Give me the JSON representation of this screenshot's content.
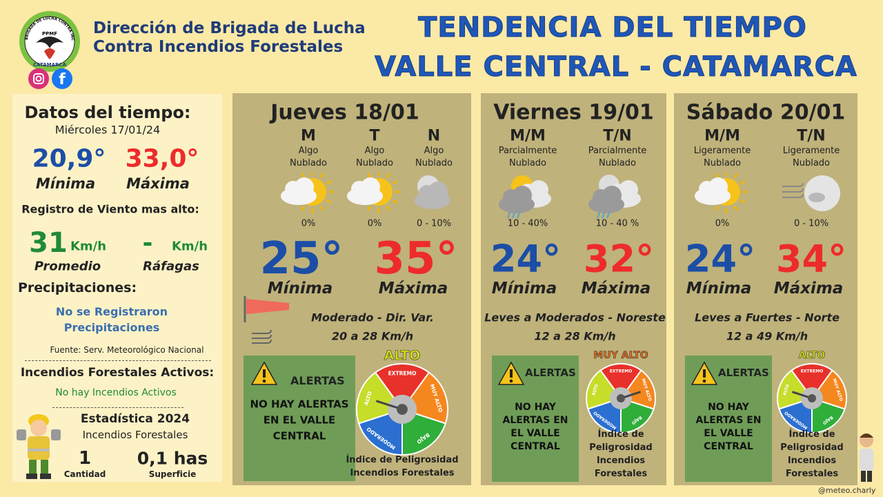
{
  "header": {
    "logo_ring": "BRIGADA DE LUCHA CONTRA INCENDIOS FORESTALES",
    "logo_code": "PPMF",
    "logo_place": "CATAMARCA",
    "org_line1": "Dirección de Brigada de Lucha",
    "org_line2": "Contra Incendios Forestales",
    "title_line1": "TENDENCIA DEL TIEMPO",
    "title_line2": "VALLE CENTRAL - CATAMARCA"
  },
  "today": {
    "heading": "Datos del tiempo:",
    "date": "Miércoles 17/01/24",
    "min": "20,9°",
    "min_label": "Mínima",
    "max": "33,0°",
    "max_label": "Máxima",
    "wind_heading": "Registro de Viento mas alto:",
    "wind_avg": "31",
    "wind_avg_unit": "Km/h",
    "wind_avg_label": "Promedio",
    "gust": "-",
    "gust_unit": "Km/h",
    "gust_label": "Ráfagas",
    "precip_heading": "Precipitaciones:",
    "precip_text": "No se Registraron Precipitaciones",
    "source": "Fuente: Serv. Meteorológico Nacional",
    "fires_heading": "Incendios Forestales Activos:",
    "fires_text": "No hay Incendios Activos",
    "stats_heading": "Estadística 2024",
    "stats_sub": "Incendios Forestales",
    "count": "1",
    "count_label": "Cantidad",
    "area": "0,1 has",
    "area_label": "Superficie"
  },
  "danger_scale": [
    "BAJO",
    "MODERADO",
    "ALTO",
    "MUY ALTO",
    "EXTREMO"
  ],
  "days": [
    {
      "name": "Jueves 18/01",
      "periods": [
        {
          "label": "M",
          "sky": "Algo Nublado",
          "precip": "0%"
        },
        {
          "label": "T",
          "sky": "Algo Nublado",
          "precip": "0%"
        },
        {
          "label": "N",
          "sky": "Algo Nublado",
          "precip": "0 - 10%"
        }
      ],
      "min": "25°",
      "min_label": "Mínima",
      "max": "35°",
      "max_label": "Máxima",
      "wind": "Moderado - Dir. Var.",
      "wind_speed": "20 a 28 Km/h",
      "alert_title": "ALERTAS",
      "alert_text": "NO HAY ALERTAS EN EL VALLE CENTRAL",
      "danger_level": "ALTO",
      "danger_caption": "Índice de Peligrosidad Incendios Forestales"
    },
    {
      "name": "Viernes 19/01",
      "periods": [
        {
          "label": "M/M",
          "sky": "Parcialmente Nublado",
          "precip": "10 - 40%"
        },
        {
          "label": "T/N",
          "sky": "Parcialmente Nublado",
          "precip": "10 - 40 %"
        }
      ],
      "min": "24°",
      "min_label": "Mínima",
      "max": "32°",
      "max_label": "Máxima",
      "wind": "Leves a Moderados - Noreste",
      "wind_speed": "12 a 28 Km/h",
      "alert_title": "ALERTAS",
      "alert_text": "NO HAY ALERTAS EN EL VALLE CENTRAL",
      "danger_level": "MUY ALTO",
      "danger_caption": "Índice de Peligrosidad Incendios Forestales"
    },
    {
      "name": "Sábado 20/01",
      "periods": [
        {
          "label": "M/M",
          "sky": "Ligeramente Nublado",
          "precip": "0%"
        },
        {
          "label": "T/N",
          "sky": "Ligeramente Nublado",
          "precip": "0 - 10%"
        }
      ],
      "min": "24°",
      "min_label": "Mínima",
      "max": "34°",
      "max_label": "Máxima",
      "wind": "Leves a Fuertes - Norte",
      "wind_speed": "12 a 49 Km/h",
      "alert_title": "ALERTAS",
      "alert_text": "NO HAY ALERTAS EN EL VALLE CENTRAL",
      "danger_level": "ALTO",
      "danger_caption": "Índice de Peligrosidad Incendios Forestales"
    }
  ],
  "footer": "@meteo.charly"
}
